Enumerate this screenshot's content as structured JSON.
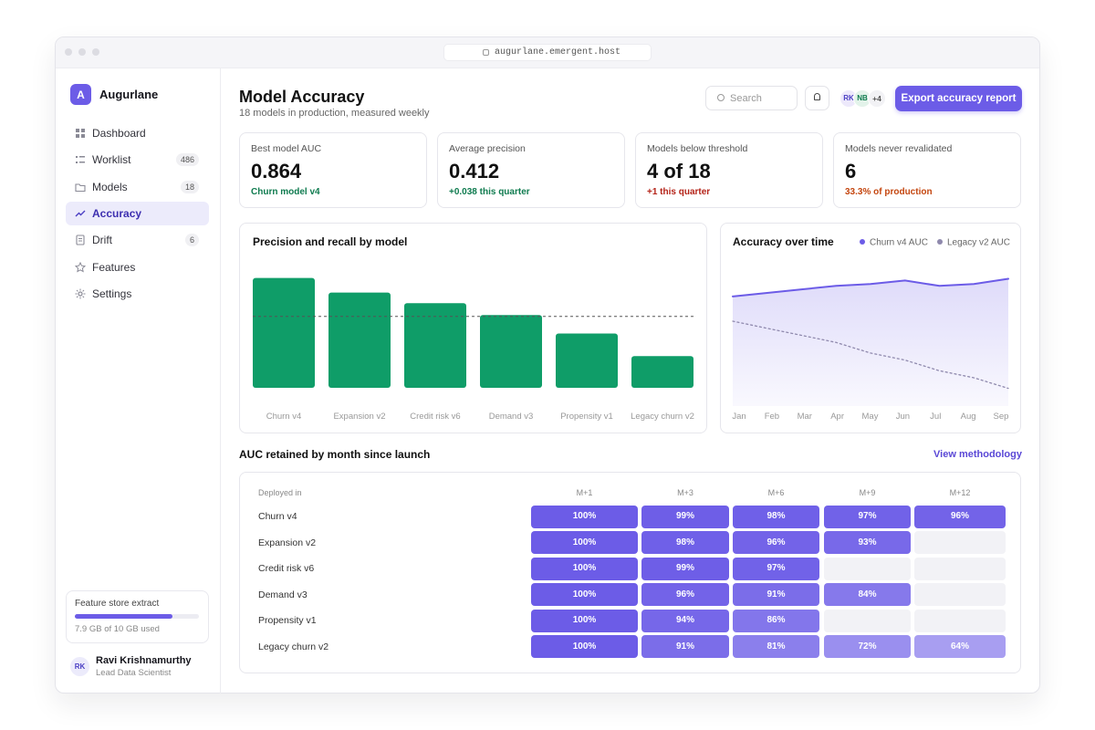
{
  "browser": {
    "url": "augurlane.emergent.host"
  },
  "sidebar": {
    "logo": "A",
    "brand": "Augurlane",
    "nav": [
      {
        "label": "Dashboard"
      },
      {
        "label": "Worklist",
        "badge": 486
      },
      {
        "label": "Models",
        "badge": 18
      },
      {
        "label": "Accuracy",
        "active": true
      },
      {
        "label": "Drift",
        "badge": 6
      },
      {
        "label": "Features"
      },
      {
        "label": "Settings"
      }
    ],
    "storage": {
      "label": "Feature store extract",
      "usage_label": "7.9 GB of 10 GB used",
      "used": 7.9,
      "capacity": 10,
      "color": "#6c5ce7"
    },
    "user": {
      "initials": "RK",
      "name": "Ravi Krishnamurthy",
      "role": "Lead Data Scientist"
    }
  },
  "header": {
    "title": "Model Accuracy",
    "subtitle": "18 models in production, measured weekly",
    "search_placeholder": "Search",
    "avatars": [
      "RK",
      "NB"
    ],
    "more": "+4",
    "action": "Export accuracy report"
  },
  "kpis": [
    {
      "label": "Best model AUC",
      "value": 0.864,
      "note": "Churn model v4",
      "note_color": "#0f7b4f"
    },
    {
      "label": "Average precision",
      "value": 0.412,
      "note": "+0.038 this quarter",
      "note_color": "#0f7b4f"
    },
    {
      "label": "Models below threshold",
      "value": "4 of 18",
      "note": "+1 this quarter",
      "note_color": "#b42318"
    },
    {
      "label": "Models never revalidated",
      "value": 6,
      "note": "33.3% of production",
      "note_color": "#c4460f"
    }
  ],
  "chart_data": [
    {
      "type": "bar",
      "title": "Precision and recall by model",
      "categories": [
        "Churn v4",
        "Expansion v2",
        "Credit risk v6",
        "Demand v3",
        "Propensity v1",
        "Legacy churn v2"
      ],
      "values": [
        0.83,
        0.72,
        0.64,
        0.55,
        0.41,
        0.24
      ],
      "color": "#0f9d68",
      "threshold": 0.54,
      "ylim": [
        0,
        1
      ]
    },
    {
      "type": "line",
      "title": "Accuracy over time",
      "categories": [
        "Jan",
        "Feb",
        "Mar",
        "Apr",
        "May",
        "Jun",
        "Jul",
        "Aug",
        "Sep"
      ],
      "series": [
        {
          "name": "Churn v4 AUC",
          "color": "#6c5ce7",
          "values": [
            0.81,
            0.82,
            0.83,
            0.84,
            0.845,
            0.855,
            0.84,
            0.845,
            0.86
          ],
          "area": true
        },
        {
          "name": "Legacy v2 AUC",
          "color": "#8f89ad",
          "values": [
            0.74,
            0.72,
            0.7,
            0.68,
            0.65,
            0.63,
            0.6,
            0.58,
            0.55
          ],
          "dashed": true
        }
      ],
      "ylim": [
        0.5,
        0.9
      ]
    }
  ],
  "heatmap": {
    "title": "AUC retained by month since launch",
    "link": "View methodology",
    "corner": "Deployed in",
    "columns": [
      "M+1",
      "M+3",
      "M+6",
      "M+9",
      "M+12"
    ],
    "rows": [
      "Churn v4",
      "Expansion v2",
      "Credit risk v6",
      "Demand v3",
      "Propensity v1",
      "Legacy churn v2"
    ],
    "values": [
      [
        100,
        99,
        98,
        97,
        96
      ],
      [
        100,
        98,
        96,
        93,
        null
      ],
      [
        100,
        99,
        97,
        null,
        null
      ],
      [
        100,
        96,
        91,
        84,
        null
      ],
      [
        100,
        94,
        86,
        null,
        null
      ],
      [
        100,
        91,
        81,
        72,
        64
      ]
    ],
    "value_labels": [
      [
        "100%",
        "99%",
        "98%",
        "97%",
        "96%"
      ],
      [
        "100%",
        "98%",
        "96%",
        "93%",
        null
      ],
      [
        "100%",
        "99%",
        "97%",
        null,
        null
      ],
      [
        "100%",
        "96%",
        "91%",
        "84%",
        null
      ],
      [
        "100%",
        "94%",
        "86%",
        null,
        null
      ],
      [
        "100%",
        "91%",
        "81%",
        "72%",
        "64%"
      ]
    ],
    "color": "#6c5ce7",
    "empty_color": "#f2f2f6"
  }
}
